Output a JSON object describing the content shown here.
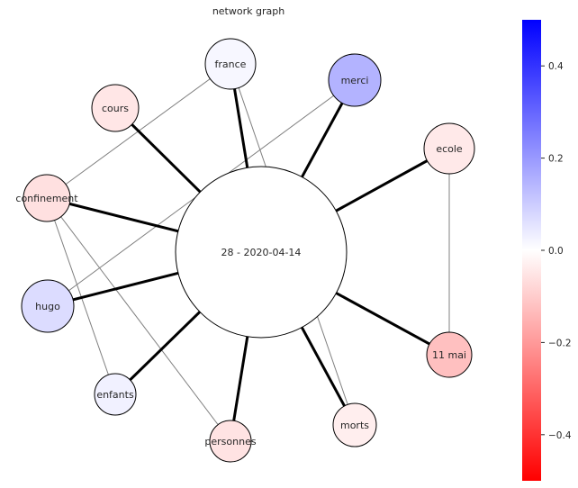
{
  "title": "network graph",
  "center": {
    "label": "28 - 2020-04-14",
    "fill": "#ffffff"
  },
  "nodes": [
    {
      "id": "france",
      "label": "france",
      "fill": "#f7f7ff",
      "value": 0.02
    },
    {
      "id": "merci",
      "label": "merci",
      "fill": "#b3b3ff",
      "value": 0.15
    },
    {
      "id": "cours",
      "label": "cours",
      "fill": "#ffe6e6",
      "value": -0.05
    },
    {
      "id": "ecole",
      "label": "ecole",
      "fill": "#ffe9e9",
      "value": -0.04
    },
    {
      "id": "confinement",
      "label": "confinement",
      "fill": "#ffe0e0",
      "value": -0.06
    },
    {
      "id": "hugo",
      "label": "hugo",
      "fill": "#dcdcff",
      "value": 0.07
    },
    {
      "id": "11mai",
      "label": "11 mai",
      "fill": "#ffc0c0",
      "value": -0.12
    },
    {
      "id": "enfants",
      "label": "enfants",
      "fill": "#f1f1ff",
      "value": 0.03
    },
    {
      "id": "morts",
      "label": "morts",
      "fill": "#ffeeee",
      "value": -0.03
    },
    {
      "id": "personnes",
      "label": "personnes",
      "fill": "#ffe3e3",
      "value": -0.05
    }
  ],
  "edges_to_center": [
    "france",
    "merci",
    "cours",
    "ecole",
    "confinement",
    "hugo",
    "11mai",
    "enfants",
    "morts",
    "personnes"
  ],
  "edges_between": [
    [
      "france",
      "confinement"
    ],
    [
      "france",
      "morts"
    ],
    [
      "merci",
      "hugo"
    ],
    [
      "ecole",
      "11mai"
    ],
    [
      "ecole",
      "center"
    ],
    [
      "confinement",
      "center"
    ],
    [
      "confinement",
      "enfants"
    ],
    [
      "confinement",
      "personnes"
    ],
    [
      "enfants",
      "center"
    ],
    [
      "11mai",
      "center"
    ]
  ],
  "colorbar": {
    "min": -0.5,
    "max": 0.5,
    "colors": {
      "low": "#ff0000",
      "mid": "#ffffff",
      "high": "#0000ff"
    },
    "ticks": [
      "0.4",
      "0.2",
      "0.0",
      "−0.2",
      "−0.4"
    ]
  }
}
